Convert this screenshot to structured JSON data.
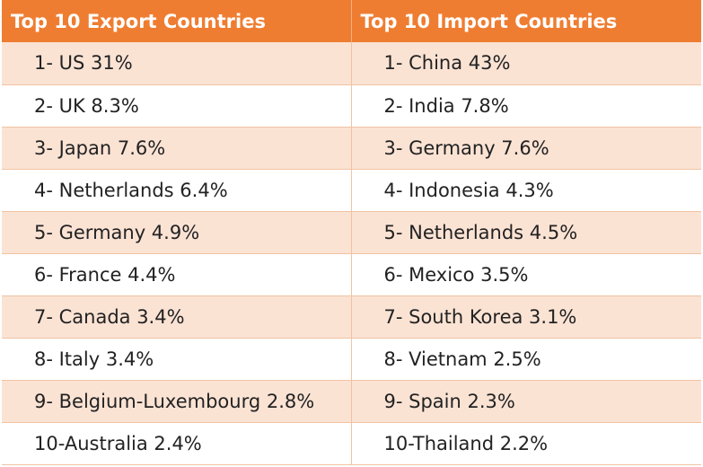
{
  "table": {
    "headers": [
      "Top 10 Export Countries",
      "Top 10 Import Countries"
    ],
    "rows": [
      {
        "export": "1-  US 31%",
        "import": "1-  China 43%"
      },
      {
        "export": "2-  UK 8.3%",
        "import": "2-  India 7.8%"
      },
      {
        "export": "3-  Japan 7.6%",
        "import": "3-  Germany 7.6%"
      },
      {
        "export": "4-  Netherlands 6.4%",
        "import": "4-  Indonesia 4.3%"
      },
      {
        "export": "5-  Germany 4.9%",
        "import": "5-  Netherlands 4.5%"
      },
      {
        "export": "6-  France 4.4%",
        "import": "6-  Mexico 3.5%"
      },
      {
        "export": "7-  Canada 3.4%",
        "import": "7-  South Korea 3.1%"
      },
      {
        "export": "8-  Italy 3.4%",
        "import": "8-  Vietnam 2.5%"
      },
      {
        "export": "9-  Belgium-Luxembourg 2.8%",
        "import": "9-  Spain 2.3%"
      },
      {
        "export": "10-Australia 2.4%",
        "import": "10-Thailand 2.2%"
      }
    ]
  },
  "colors": {
    "header_bg": "#ef7d31",
    "header_text": "#ffffff",
    "band_row_bg": "#fbe3d4",
    "plain_row_bg": "#ffffff",
    "grid_line": "#f0c3a3"
  }
}
